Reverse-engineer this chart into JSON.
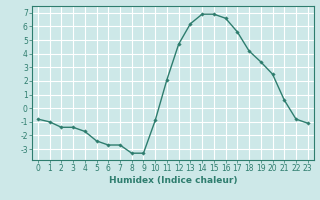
{
  "x": [
    0,
    1,
    2,
    3,
    4,
    5,
    6,
    7,
    8,
    9,
    10,
    11,
    12,
    13,
    14,
    15,
    16,
    17,
    18,
    19,
    20,
    21,
    22,
    23
  ],
  "y": [
    -0.8,
    -1.0,
    -1.4,
    -1.4,
    -1.7,
    -2.4,
    -2.7,
    -2.7,
    -3.3,
    -3.3,
    -0.9,
    2.1,
    4.7,
    6.2,
    6.9,
    6.9,
    6.6,
    5.6,
    4.2,
    3.4,
    2.5,
    0.6,
    -0.8,
    -1.1
  ],
  "line_color": "#2e7d6e",
  "marker": "D",
  "marker_size": 1.8,
  "bg_color": "#cde8e8",
  "grid_color": "#ffffff",
  "xlabel": "Humidex (Indice chaleur)",
  "xlim": [
    -0.5,
    23.5
  ],
  "ylim": [
    -3.8,
    7.5
  ],
  "yticks": [
    -3,
    -2,
    -1,
    0,
    1,
    2,
    3,
    4,
    5,
    6,
    7
  ],
  "xticks": [
    0,
    1,
    2,
    3,
    4,
    5,
    6,
    7,
    8,
    9,
    10,
    11,
    12,
    13,
    14,
    15,
    16,
    17,
    18,
    19,
    20,
    21,
    22,
    23
  ],
  "xlabel_fontsize": 6.5,
  "tick_fontsize": 5.5,
  "line_width": 1.0
}
